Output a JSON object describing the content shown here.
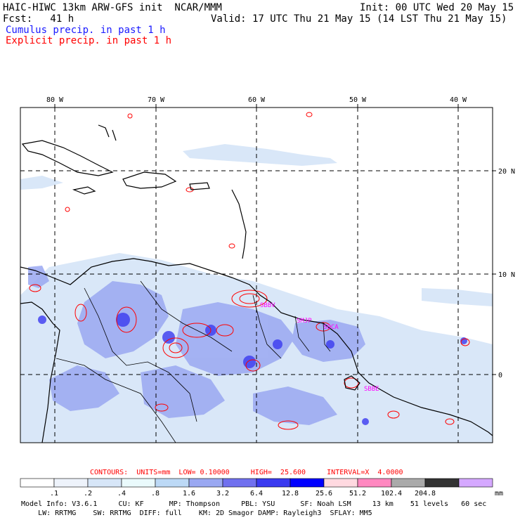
{
  "header": {
    "left_line1": "HAIC-HIWC 13km ARW-GFS init  NCAR/MMM",
    "right_line1": "Init: 00 UTC Wed 20 May 15",
    "left_line2": "Fcst:   41 h",
    "right_line2": "Valid: 17 UTC Thu 21 May 15 (14 LST Thu 21 May 15)",
    "cumulus_legend": "Cumulus precip. in past 1 h",
    "explicit_legend": "Explicit precip. in past 1 h"
  },
  "map": {
    "lon_labels": [
      "80 W",
      "70 W",
      "60 W",
      "50 W",
      "40 W"
    ],
    "lat_labels": [
      "20 N",
      "10 N",
      "0"
    ],
    "station_labels": [
      "SBBV",
      "SMJP",
      "SOCA",
      "SBBE"
    ]
  },
  "contours": {
    "text": "CONTOURS:  UNITS=mm  LOW= 0.10000     HIGH=  25.600     INTERVAL=X  4.0000"
  },
  "colorbar": {
    "labels": [
      ".1",
      ".2",
      ".4",
      ".8",
      "1.6",
      "3.2",
      "6.4",
      "12.8",
      "25.6",
      "51.2",
      "102.4",
      "204.8"
    ],
    "units": "mm",
    "colors": [
      "#ffffff",
      "#eef3fb",
      "#d7e6f8",
      "#eafafc",
      "#bcd9f6",
      "#9aa8f2",
      "#7070ef",
      "#3a3af0",
      "#0000ff",
      "#ffd9e0",
      "#ff88c0",
      "#aaaaaa",
      "#333333",
      "#d5a8ff"
    ]
  },
  "model_info": {
    "line1": "Model Info: V3.6.1     CU: KF      MP: Thompson     PBL: YSU      SF: Noah LSM     13 km    51 levels   60 sec",
    "line2": "    LW: RRTMG    SW: RRTMG  DIFF: full    KM: 2D Smagor DAMP: Rayleigh3  SFLAY: MM5"
  },
  "colors": {
    "coast": "#000000",
    "cumulus": "#5a6ee8",
    "explicit": "#ff0000",
    "station": "#ff00ff"
  }
}
